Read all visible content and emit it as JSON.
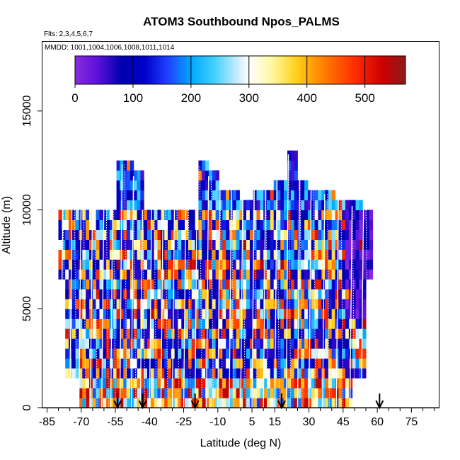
{
  "chart_data": {
    "type": "heatmap",
    "title": "ATOM3 Southbound Npos_PALMS",
    "flights_label": "Flts: 2,3,4,5,6,7",
    "dates_label": "MMDD: 1001,1004,1006,1008,1011,1014",
    "xlabel": "Latitude (deg N)",
    "ylabel": "Altitude (m)",
    "xlim": [
      -87,
      87
    ],
    "ylim": [
      0,
      18500
    ],
    "x_ticks": [
      -85,
      -70,
      -55,
      -40,
      -25,
      -10,
      5,
      15,
      30,
      45,
      60,
      75
    ],
    "x_minor_ticks": [
      -80,
      -75,
      -65,
      -60,
      -50,
      -45,
      -35,
      -30,
      -20,
      -15,
      -5,
      0,
      10,
      20,
      25,
      35,
      40,
      50,
      55,
      65,
      70,
      80,
      85
    ],
    "x_tick_labels": [
      "-85",
      "-70",
      "-55",
      "-40",
      "-25",
      "-10",
      "5",
      "15",
      "30",
      "45",
      "60",
      "75"
    ],
    "y_ticks": [
      0,
      5000,
      10000,
      15000
    ],
    "y_tick_labels": [
      "0",
      "5000",
      "10000",
      "15000"
    ],
    "colorbar": {
      "min": 0,
      "max": 570,
      "ticks": [
        0,
        100,
        200,
        300,
        400,
        500
      ],
      "tick_labels": [
        "0",
        "100",
        "200",
        "300",
        "400",
        "500"
      ],
      "color_stops": [
        {
          "v": 0,
          "color": "#8a2be2"
        },
        {
          "v": 40,
          "color": "#5a10d8"
        },
        {
          "v": 80,
          "color": "#0000b0"
        },
        {
          "v": 120,
          "color": "#0000c8"
        },
        {
          "v": 160,
          "color": "#2040ff"
        },
        {
          "v": 200,
          "color": "#00a8ff"
        },
        {
          "v": 240,
          "color": "#40d0ff"
        },
        {
          "v": 280,
          "color": "#c8ecff"
        },
        {
          "v": 300,
          "color": "#ffffff"
        },
        {
          "v": 340,
          "color": "#fff7a0"
        },
        {
          "v": 380,
          "color": "#ffd21f"
        },
        {
          "v": 420,
          "color": "#ff8c00"
        },
        {
          "v": 480,
          "color": "#ff3000"
        },
        {
          "v": 530,
          "color": "#cc0000"
        },
        {
          "v": 570,
          "color": "#8b1a1a"
        }
      ]
    },
    "profiles": [
      {
        "lat": -79,
        "lat_end": -77,
        "top": 10000
      },
      {
        "lat": -75,
        "lat_end": -72,
        "top": 10000
      },
      {
        "lat": -71,
        "lat_end": -68,
        "top": 10000
      },
      {
        "lat": -66,
        "lat_end": -63,
        "top": 10000
      },
      {
        "lat": -61,
        "lat_end": -58,
        "top": 10000
      },
      {
        "lat": -57,
        "lat_end": -55,
        "top": 12300
      },
      {
        "lat": -53,
        "lat_end": -50,
        "top": 12300
      },
      {
        "lat": -48,
        "lat_end": -46,
        "top": 11700
      },
      {
        "lat": -44,
        "lat_end": -42,
        "top": 10000
      },
      {
        "lat": -40,
        "lat_end": -37,
        "top": 10000
      },
      {
        "lat": -35,
        "lat_end": -32,
        "top": 10000
      },
      {
        "lat": -30,
        "lat_end": -27,
        "top": 10000
      },
      {
        "lat": -25,
        "lat_end": -22,
        "top": 10000
      },
      {
        "lat": -20,
        "lat_end": -17,
        "top": 12200
      },
      {
        "lat": -15,
        "lat_end": -12,
        "top": 11700
      },
      {
        "lat": -10,
        "lat_end": -8,
        "top": 11000
      },
      {
        "lat": -5,
        "lat_end": -3,
        "top": 11000
      },
      {
        "lat": 0,
        "lat_end": 2,
        "top": 10500
      },
      {
        "lat": 5,
        "lat_end": 7,
        "top": 11000
      },
      {
        "lat": 10,
        "lat_end": 12,
        "top": 11000
      },
      {
        "lat": 15,
        "lat_end": 17,
        "top": 11500
      },
      {
        "lat": 20,
        "lat_end": 22,
        "top": 12800
      },
      {
        "lat": 25,
        "lat_end": 27,
        "top": 11500
      },
      {
        "lat": 30,
        "lat_end": 33,
        "top": 11000
      },
      {
        "lat": 36,
        "lat_end": 39,
        "top": 10800
      },
      {
        "lat": 42,
        "lat_end": 45,
        "top": 10500
      },
      {
        "lat": 48,
        "lat_end": 50,
        "top": 10200
      },
      {
        "lat": 53,
        "lat_end": 56,
        "top": 10000
      }
    ],
    "arrows_lat": [
      -54,
      -43,
      -20,
      18,
      61
    ],
    "seed": 7
  }
}
